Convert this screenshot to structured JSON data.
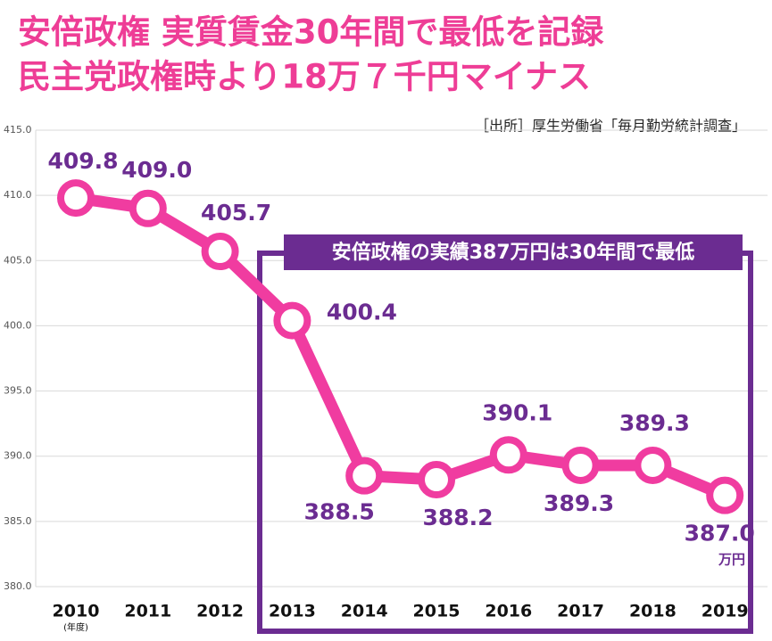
{
  "chart_data": {
    "type": "line",
    "title": "安倍政権 実質賃金30年間で最低を記録",
    "subtitle": "民主党政権時より18万７千円マイナス",
    "source": "［出所］厚生労働省「毎月勤労統計調査」",
    "annotation": "安倍政権の実績387万円は30年間で最低",
    "unit_label": "万円",
    "x_note": "(年度)",
    "categories": [
      "2010",
      "2011",
      "2012",
      "2013",
      "2014",
      "2015",
      "2016",
      "2017",
      "2018",
      "2019"
    ],
    "values": [
      409.8,
      409.0,
      405.7,
      400.4,
      388.5,
      388.2,
      390.1,
      389.3,
      389.3,
      387.0
    ],
    "value_labels": [
      "409.8",
      "409.0",
      "405.7",
      "400.4",
      "388.5",
      "388.2",
      "390.1",
      "389.3",
      "389.3",
      "387.0"
    ],
    "color": "#f03ca0",
    "ylim": [
      380,
      415
    ],
    "yticks": [
      {
        "value": 380,
        "label": "380.0"
      },
      {
        "value": 385,
        "label": "385.0"
      },
      {
        "value": 390,
        "label": "390.0"
      },
      {
        "value": 395,
        "label": "395.0"
      },
      {
        "value": 400,
        "label": "400.0"
      },
      {
        "value": 405,
        "label": "405.0"
      },
      {
        "value": 410,
        "label": "410.0"
      },
      {
        "value": 415,
        "label": "415.0"
      }
    ],
    "grid": true
  }
}
